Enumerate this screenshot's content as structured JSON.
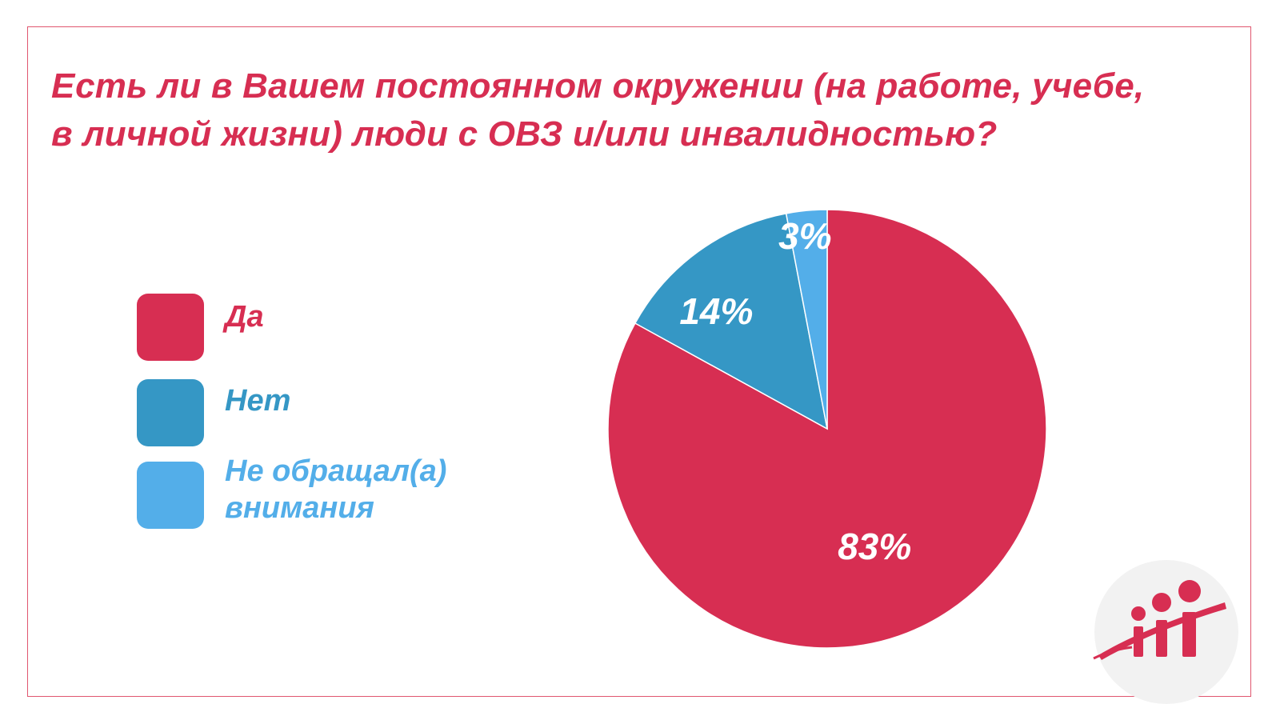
{
  "title": "Есть ли в Вашем постоянном окружении (на работе, учебе, в личной жизни) люди с ОВЗ и/или инвалидностью?",
  "title_line1": "Есть ли в Вашем постоянном окружении (на работе, учебе,",
  "title_line2": "в личной жизни) люди с ОВЗ и/или инвалидностью?",
  "colors": {
    "accent": "#d72e52",
    "frame": "#e0566f",
    "logo_circle": "#f2f2f2"
  },
  "logo_icon": "people-growth-logo-icon",
  "chart_data": {
    "type": "pie",
    "title": "Есть ли в Вашем постоянном окружении (на работе, учебе, в личной жизни) люди с ОВЗ и/или инвалидностью?",
    "legend_position": "left",
    "categories": [
      "Да",
      "Нет",
      "Не обращал(а) внимания"
    ],
    "values": [
      83,
      14,
      3
    ],
    "labels": [
      "83%",
      "14%",
      "3%"
    ],
    "colors": [
      "#d72e52",
      "#3597c5",
      "#53aee9"
    ]
  },
  "legend": {
    "items": [
      {
        "label": "Да",
        "color": "#d72e52"
      },
      {
        "label": "Нет",
        "color": "#3597c5"
      },
      {
        "label_line1": "Не обращал(а)",
        "label_line2": "внимания",
        "color": "#53aee9"
      }
    ]
  }
}
